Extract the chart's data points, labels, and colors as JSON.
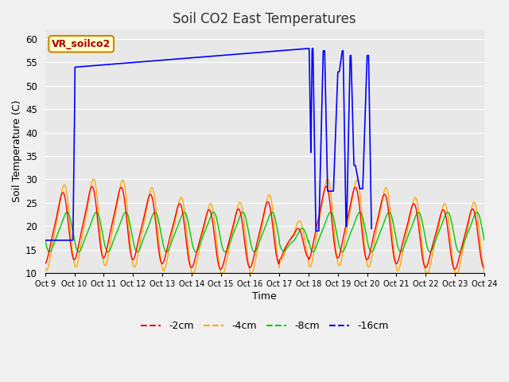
{
  "title": "Soil CO2 East Temperatures",
  "xlabel": "Time",
  "ylabel": "Soil Temperature (C)",
  "ylim": [
    10,
    62
  ],
  "xlim": [
    0,
    15
  ],
  "plot_bg": "#e8e8e8",
  "fig_bg": "#f0f0f0",
  "grid_color": "#ffffff",
  "annotation_text": "VR_soilco2",
  "annotation_bg": "#ffffcc",
  "annotation_border": "#cc8800",
  "annotation_text_color": "#aa0000",
  "legend_labels": [
    "-2cm",
    "-4cm",
    "-8cm",
    "-16cm"
  ],
  "legend_colors": [
    "#ff0000",
    "#ffaa00",
    "#00cc00",
    "#0000ff"
  ],
  "xtick_labels": [
    "Oct 9",
    "Oct 10",
    "Oct 11",
    "Oct 12",
    "Oct 13",
    "Oct 14",
    "Oct 15",
    "Oct 16",
    "Oct 17",
    "Oct 18",
    "Oct 19",
    "Oct 20",
    "Oct 21",
    "Oct 22",
    "Oct 23",
    "Oct 24"
  ],
  "ytick_values": [
    10,
    15,
    20,
    25,
    30,
    35,
    40,
    45,
    50,
    55,
    60
  ]
}
